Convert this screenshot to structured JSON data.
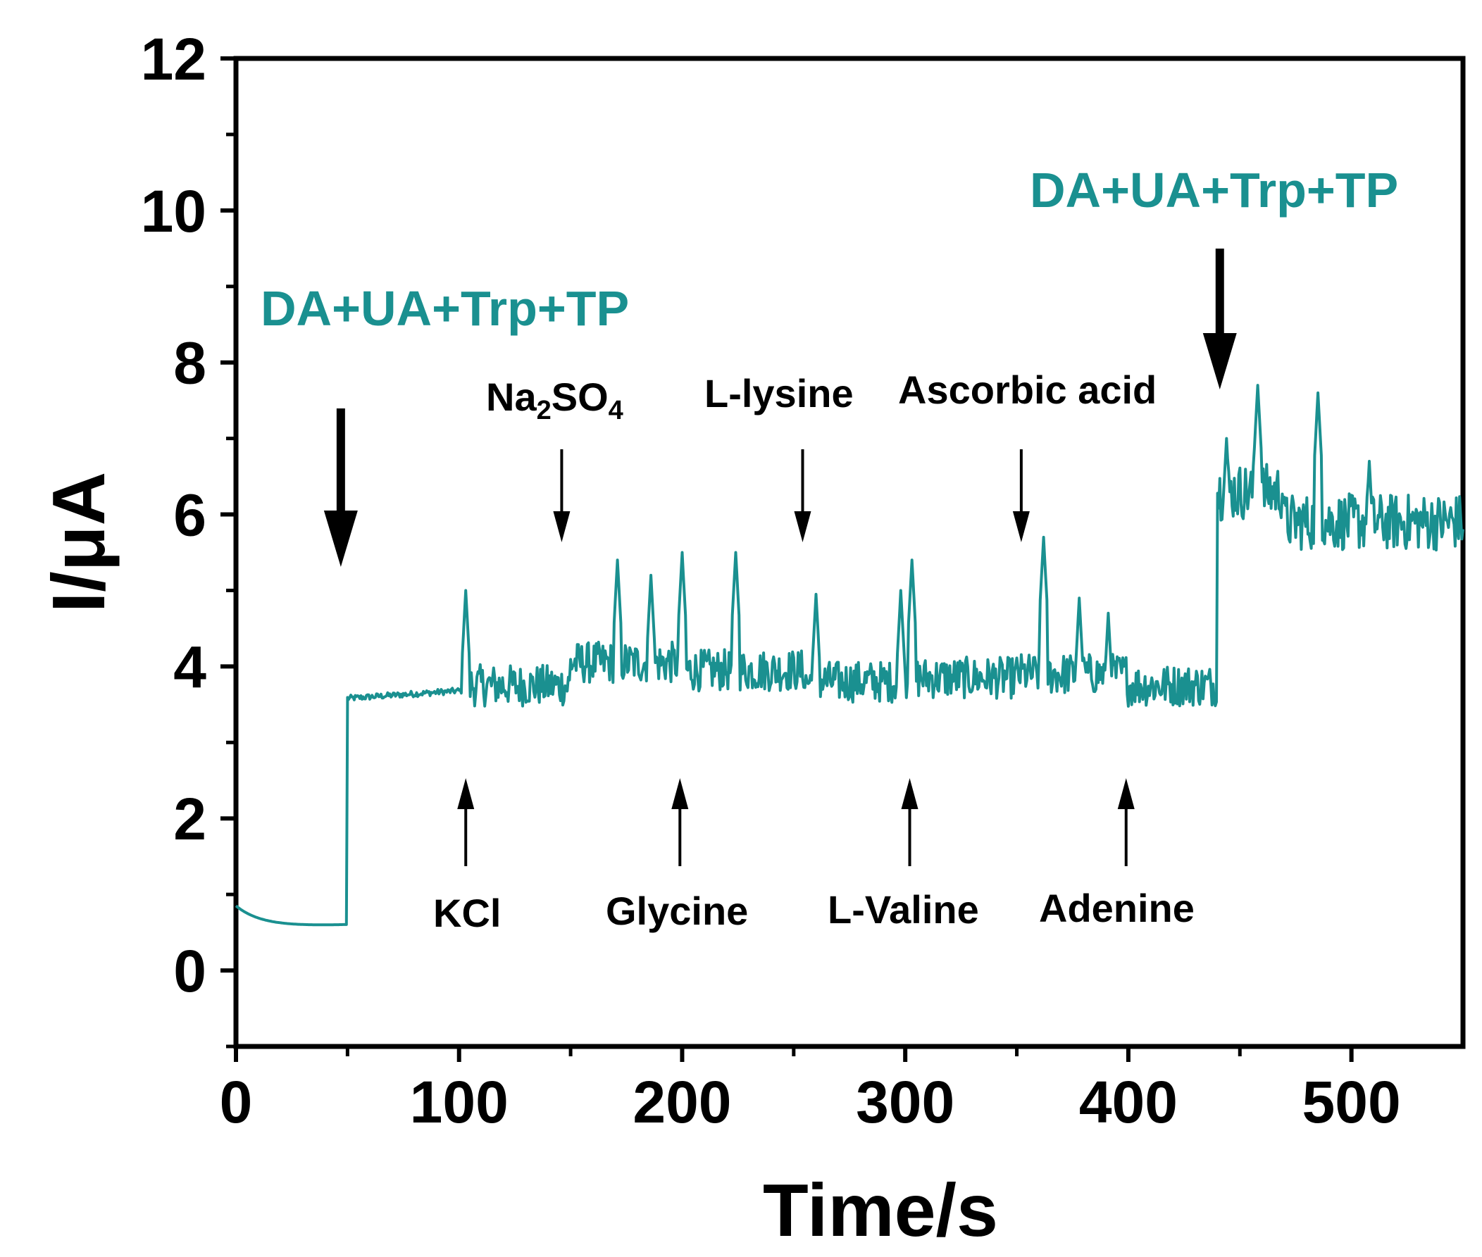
{
  "chart_data": {
    "type": "line",
    "title": "",
    "xlabel": "Time/s",
    "ylabel": "I/μA",
    "xlim": [
      0,
      550
    ],
    "ylim": [
      -1,
      12
    ],
    "x_ticks": [
      0,
      100,
      200,
      300,
      400,
      500
    ],
    "y_ticks": [
      0,
      2,
      4,
      6,
      8,
      10,
      12
    ],
    "grid": false,
    "series_color": "#1a9090",
    "baseline_segments": [
      {
        "t0": 0,
        "t1": 50,
        "level": 0.72
      },
      {
        "t0": 50,
        "t1": 102,
        "level": 3.6
      },
      {
        "t0": 102,
        "t1": 150,
        "level": 3.75
      },
      {
        "t0": 150,
        "t1": 200,
        "level": 4.05
      },
      {
        "t0": 200,
        "t1": 255,
        "level": 3.95
      },
      {
        "t0": 255,
        "t1": 300,
        "level": 3.8
      },
      {
        "t0": 300,
        "t1": 350,
        "level": 3.85
      },
      {
        "t0": 350,
        "t1": 400,
        "level": 3.9
      },
      {
        "t0": 400,
        "t1": 440,
        "level": 3.75
      },
      {
        "t0": 440,
        "t1": 470,
        "level": 6.3
      },
      {
        "t0": 470,
        "t1": 550,
        "level": 5.9
      }
    ],
    "spikes": [
      [
        103,
        5.0
      ],
      [
        171,
        5.4
      ],
      [
        186,
        5.2
      ],
      [
        200,
        5.5
      ],
      [
        224,
        5.5
      ],
      [
        260,
        4.95
      ],
      [
        298,
        5.0
      ],
      [
        303,
        5.4
      ],
      [
        362,
        5.7
      ],
      [
        378,
        4.9
      ],
      [
        391,
        4.7
      ],
      [
        444,
        7.0
      ],
      [
        458,
        7.7
      ],
      [
        485,
        7.6
      ],
      [
        508,
        6.7
      ]
    ],
    "annotations": {
      "addition_teal_1": {
        "text": "DA+UA+Trp+TP",
        "x": 47,
        "arrow": "down",
        "color": "#1a9090"
      },
      "addition_teal_2": {
        "text": "DA+UA+Trp+TP",
        "x": 441,
        "arrow": "down",
        "color": "#1a9090"
      },
      "interferents_top": [
        {
          "text_main": "Na",
          "sub1": "2",
          "text_mid": "SO",
          "sub2": "4",
          "x": 146
        },
        {
          "text": "L-lysine",
          "x": 254
        },
        {
          "text": "Ascorbic acid",
          "x": 352
        }
      ],
      "interferents_bottom": [
        {
          "text": "KCl",
          "x": 103
        },
        {
          "text": "Glycine",
          "x": 199
        },
        {
          "text": "L-Valine",
          "x": 302
        },
        {
          "text": "Adenine",
          "x": 399
        }
      ]
    }
  }
}
